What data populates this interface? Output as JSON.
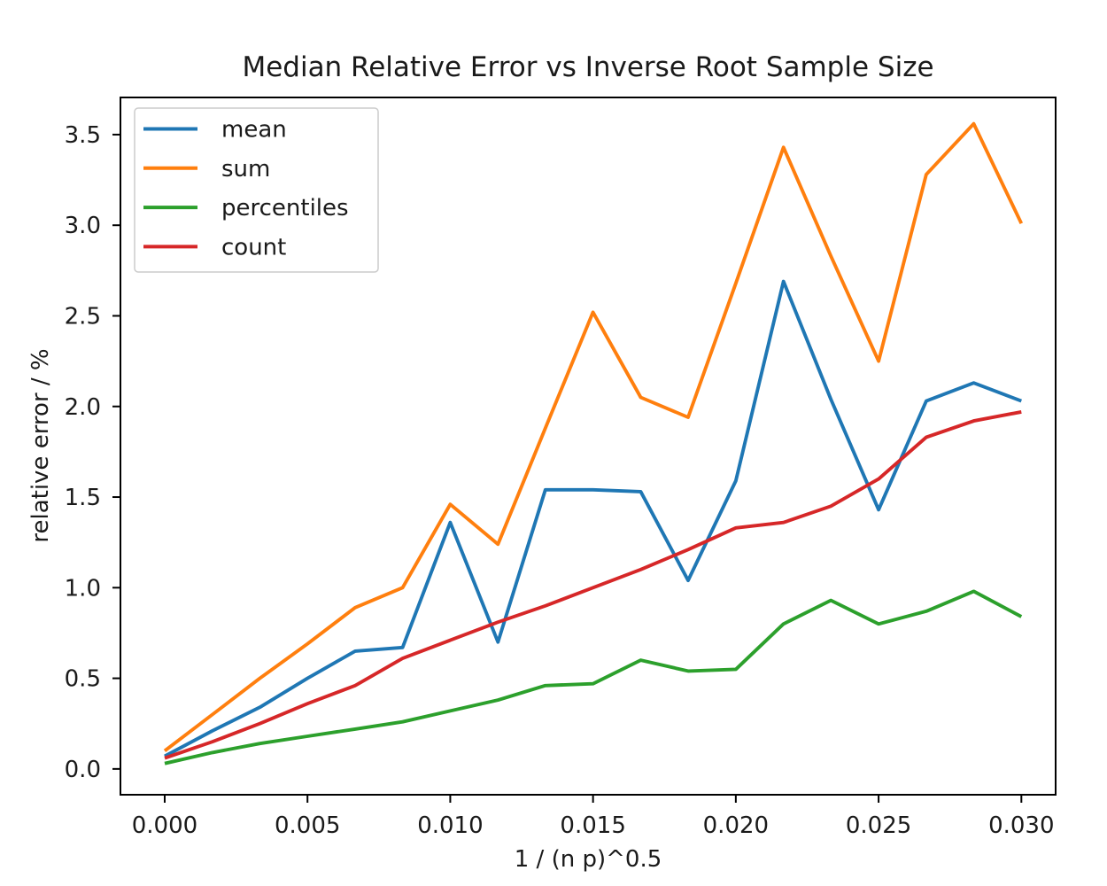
{
  "chart_data": {
    "type": "line",
    "title": "Median Relative Error vs Inverse Root Sample Size",
    "xlabel": "1 / (n p)^0.5",
    "ylabel": "relative error / %",
    "grid": false,
    "legend_position": "upper-left",
    "background_color": "#ffffff",
    "spine_color": "#000000",
    "xlim": [
      -0.00155,
      0.0312
    ],
    "ylim": [
      -0.1425,
      3.705
    ],
    "x_ticks": [
      0.0,
      0.005,
      0.01,
      0.015,
      0.02,
      0.025,
      0.03
    ],
    "x_tick_labels": [
      "0.000",
      "0.005",
      "0.010",
      "0.015",
      "0.020",
      "0.025",
      "0.030"
    ],
    "y_ticks": [
      0.0,
      0.5,
      1.0,
      1.5,
      2.0,
      2.5,
      3.0,
      3.5
    ],
    "y_tick_labels": [
      "0.0",
      "0.5",
      "1.0",
      "1.5",
      "2.0",
      "2.5",
      "3.0",
      "3.5"
    ],
    "x": [
      0.0,
      0.00167,
      0.00333,
      0.005,
      0.00667,
      0.00833,
      0.01,
      0.01167,
      0.01333,
      0.015,
      0.01667,
      0.01833,
      0.02,
      0.02167,
      0.02333,
      0.025,
      0.02667,
      0.02833,
      0.03
    ],
    "series": [
      {
        "name": "mean",
        "color": "#1f77b4",
        "values": [
          0.07,
          0.21,
          0.34,
          0.5,
          0.65,
          0.67,
          1.36,
          0.7,
          1.54,
          1.54,
          1.53,
          1.04,
          1.59,
          2.69,
          2.04,
          1.43,
          2.03,
          2.13,
          2.03
        ]
      },
      {
        "name": "sum",
        "color": "#ff7f0e",
        "values": [
          0.1,
          0.3,
          0.5,
          0.69,
          0.89,
          1.0,
          1.46,
          1.24,
          1.88,
          2.52,
          2.05,
          1.94,
          2.68,
          3.43,
          2.83,
          2.25,
          3.28,
          3.56,
          3.01
        ]
      },
      {
        "name": "percentiles",
        "color": "#2ca02c",
        "values": [
          0.03,
          0.09,
          0.14,
          0.18,
          0.22,
          0.26,
          0.32,
          0.38,
          0.46,
          0.47,
          0.6,
          0.54,
          0.55,
          0.8,
          0.93,
          0.8,
          0.87,
          0.98,
          0.84
        ]
      },
      {
        "name": "count",
        "color": "#d62728",
        "values": [
          0.06,
          0.15,
          0.25,
          0.36,
          0.46,
          0.61,
          0.71,
          0.81,
          0.9,
          1.0,
          1.1,
          1.21,
          1.33,
          1.36,
          1.45,
          1.6,
          1.83,
          1.92,
          1.97
        ]
      }
    ]
  }
}
